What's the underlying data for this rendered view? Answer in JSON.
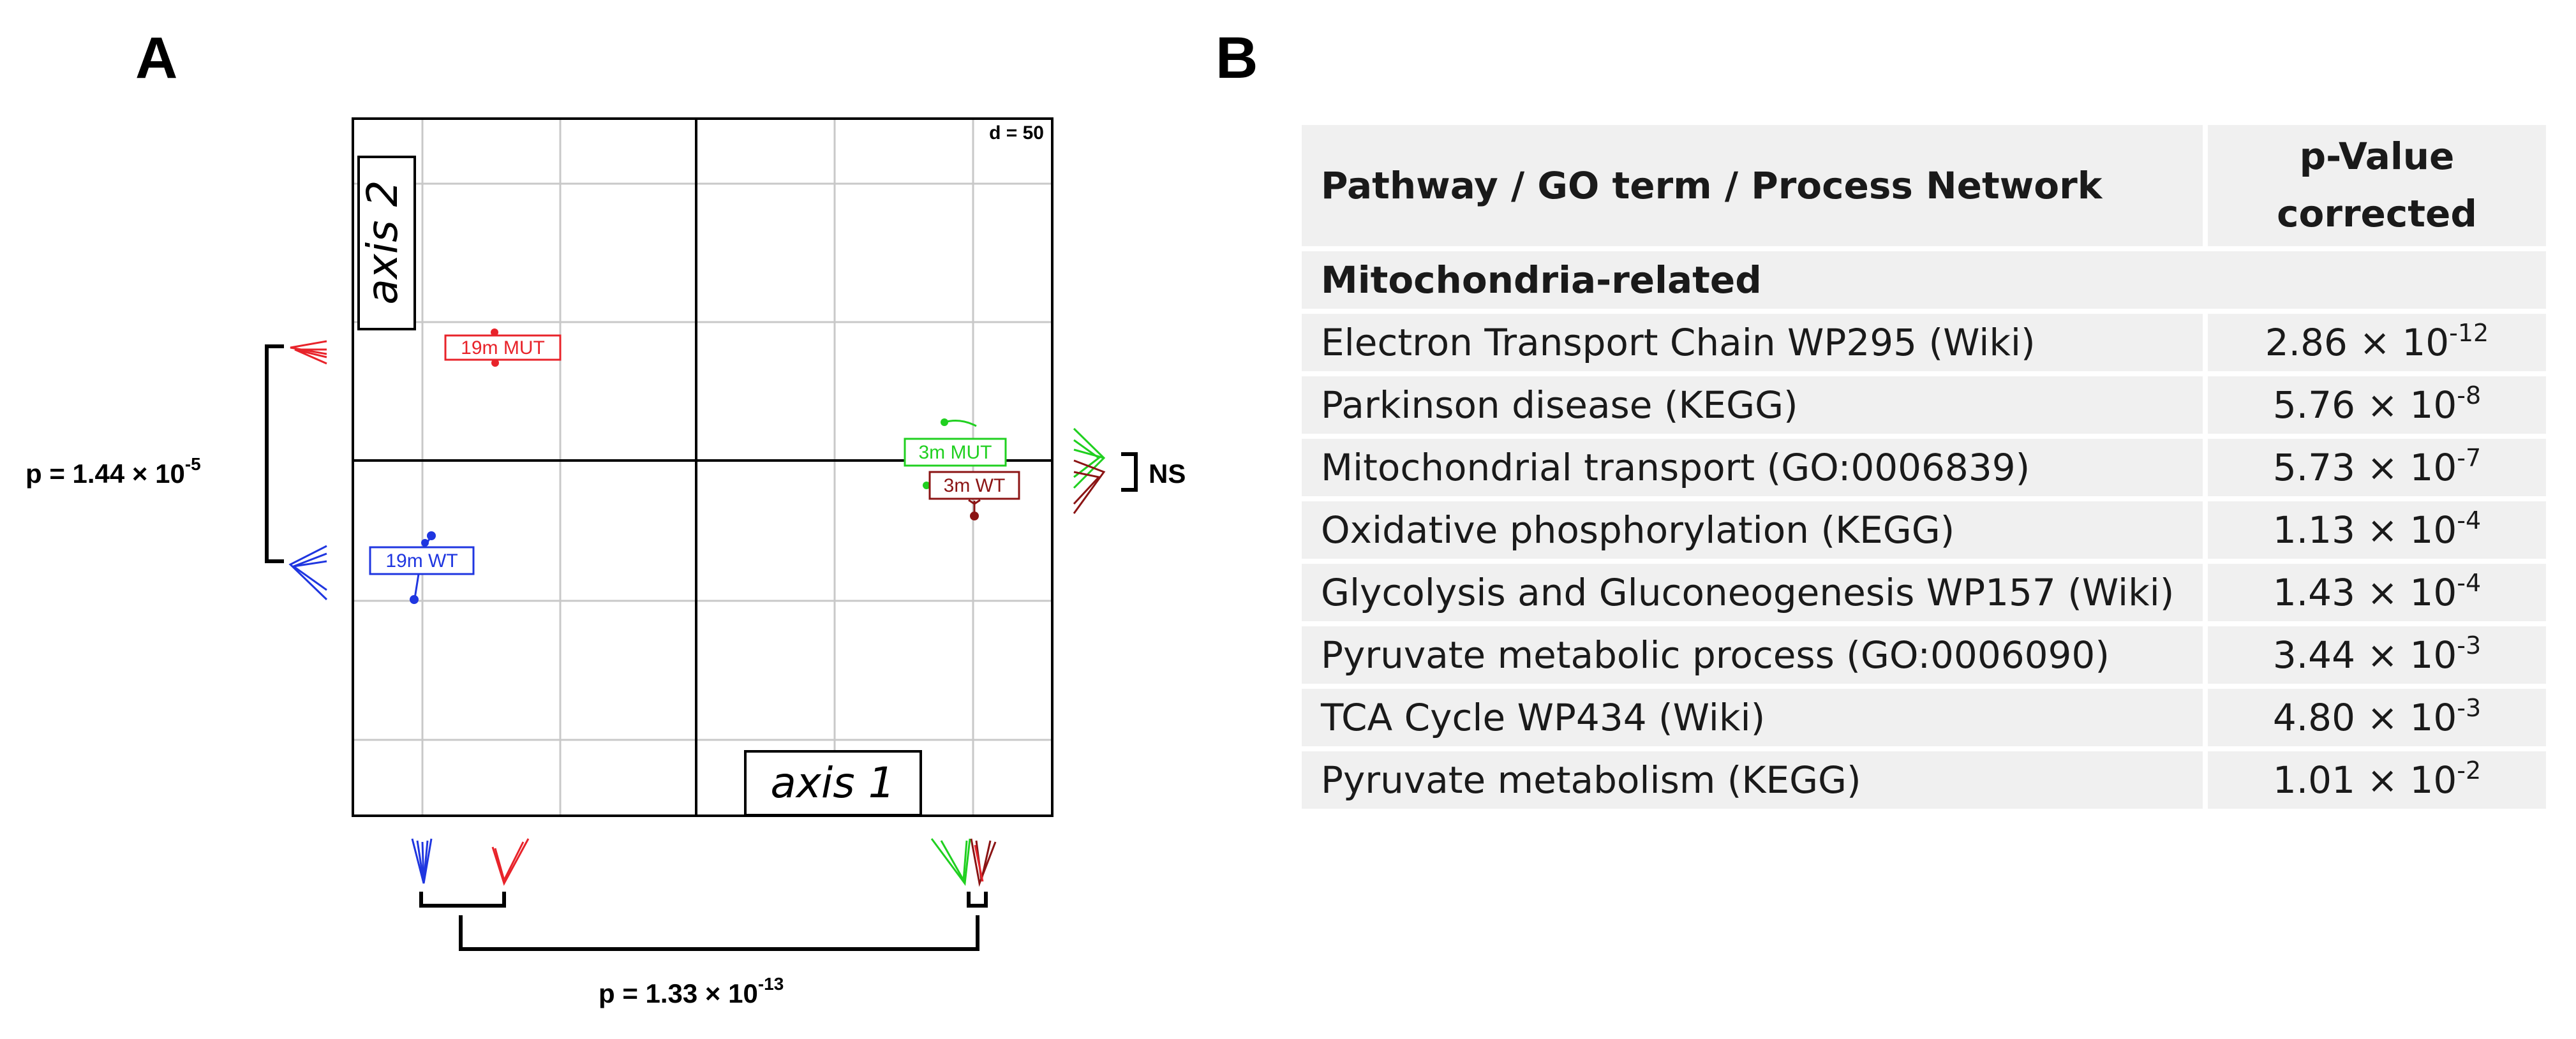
{
  "panel_a": {
    "label": "A",
    "scale_label": "d = 50",
    "axis1_label": "axis 1",
    "axis2_label": "axis 2",
    "groups": [
      {
        "name": "19m MUT",
        "color": "#e8232a"
      },
      {
        "name": "19m WT",
        "color": "#1f36e0"
      },
      {
        "name": "3m MUT",
        "color": "#20d020"
      },
      {
        "name": "3m WT",
        "color": "#8b1414"
      }
    ],
    "p_axis2": {
      "base": "p = 1.44 × 10",
      "exp": "-5"
    },
    "p_axis1": {
      "base": "p = 1.33 × 10",
      "exp": "-13"
    },
    "ns_label": "NS"
  },
  "panel_b": {
    "label": "B",
    "header": {
      "pathway": "Pathway / GO term / Process Network",
      "pvalue_line1": "p-Value",
      "pvalue_line2": "corrected"
    },
    "category": "Mitochondria-related",
    "rows": [
      {
        "term": "Electron Transport Chain WP295 (Wiki)",
        "mant": "2.86 × 10",
        "exp": "-12"
      },
      {
        "term": "Parkinson disease (KEGG)",
        "mant": "5.76 × 10",
        "exp": "-8"
      },
      {
        "term": "Mitochondrial transport (GO:0006839)",
        "mant": "5.73 × 10",
        "exp": "-7"
      },
      {
        "term": "Oxidative phosphorylation (KEGG)",
        "mant": "1.13 × 10",
        "exp": "-4"
      },
      {
        "term": "Glycolysis and Gluconeogenesis WP157 (Wiki)",
        "mant": "1.43 × 10",
        "exp": "-4"
      },
      {
        "term": "Pyruvate metabolic process (GO:0006090)",
        "mant": "3.44 × 10",
        "exp": "-3"
      },
      {
        "term": "TCA Cycle WP434 (Wiki)",
        "mant": "4.80 × 10",
        "exp": "-3"
      },
      {
        "term": "Pyruvate metabolism (KEGG)",
        "mant": "1.01 × 10",
        "exp": "-2"
      }
    ]
  }
}
